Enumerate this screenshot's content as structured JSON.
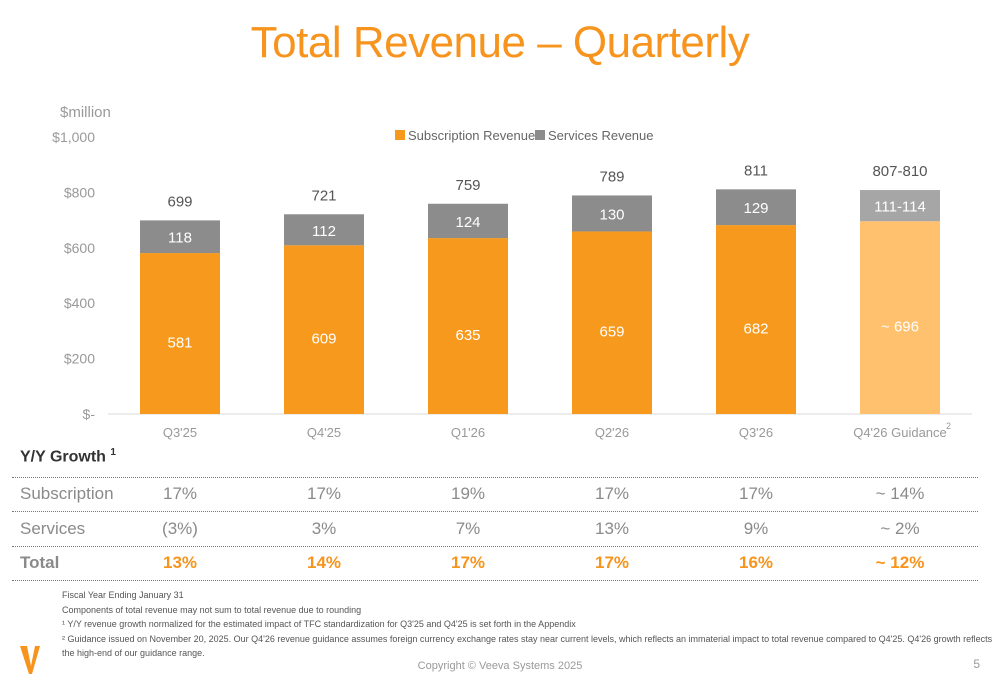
{
  "title": "Total Revenue – Quarterly",
  "chart_data": {
    "type": "bar",
    "stacked": true,
    "unit_label": "$million",
    "ylim": [
      0,
      1000
    ],
    "y_ticks": [
      0,
      200,
      400,
      600,
      800,
      1000
    ],
    "y_tick_labels": [
      "$-",
      "$200",
      "$400",
      "$600",
      "$800",
      "$1,000"
    ],
    "categories": [
      "Q3'25",
      "Q4'25",
      "Q1'26",
      "Q2'26",
      "Q3'26",
      "Q4'26 Guidance"
    ],
    "category_superscripts": [
      "",
      "",
      "",
      "",
      "",
      "2"
    ],
    "legend_placement": "top-center",
    "grid": false,
    "series": [
      {
        "name": "Subscription Revenue",
        "values": [
          581,
          609,
          635,
          659,
          682,
          696
        ],
        "labels": [
          "581",
          "609",
          "635",
          "659",
          "682",
          "~ 696"
        ],
        "color": "#F7991C",
        "guidance_color": "#FFC16E"
      },
      {
        "name": "Services Revenue",
        "values": [
          118,
          112,
          124,
          130,
          129,
          112.5
        ],
        "labels": [
          "118",
          "112",
          "124",
          "130",
          "129",
          "111-114"
        ],
        "color": "#8C8C8C",
        "guidance_color": "#A6A6A6"
      }
    ],
    "totals": [
      "699",
      "721",
      "759",
      "789",
      "811",
      "807-810"
    ]
  },
  "growth": {
    "heading": "Y/Y Growth",
    "heading_sup": "1",
    "rows": [
      {
        "label": "Subscription",
        "values": [
          "17%",
          "17%",
          "19%",
          "17%",
          "17%",
          "~ 14%"
        ]
      },
      {
        "label": "Services",
        "values": [
          "(3%)",
          "3%",
          "7%",
          "13%",
          "9%",
          "~ 2%"
        ]
      },
      {
        "label": "Total",
        "values": [
          "13%",
          "14%",
          "17%",
          "17%",
          "16%",
          "~ 12%"
        ]
      }
    ]
  },
  "footnotes": [
    "Fiscal Year Ending January 31",
    "Components of total revenue may not sum to total revenue due to rounding",
    "¹ Y/Y revenue growth normalized for the estimated impact of TFC standardization for Q3'25 and Q4'25 is set forth in the Appendix",
    "² Guidance issued on November 20, 2025. Our Q4'26 revenue guidance assumes foreign currency exchange rates stay near current levels, which reflects an immaterial impact to total revenue compared to Q4'25. Q4'26 growth reflects",
    "the high-end of our guidance range."
  ],
  "copyright": "Copyright © Veeva Systems 2025",
  "page_number": "5",
  "logo": "Veeva V",
  "colors": {
    "accent": "#F7941D"
  }
}
